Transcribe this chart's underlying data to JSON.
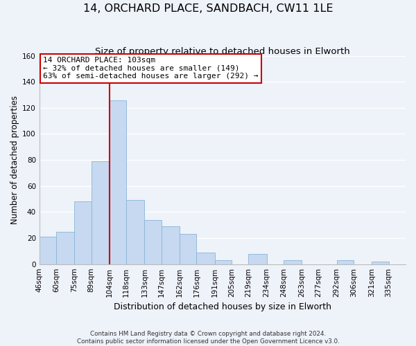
{
  "title": "14, ORCHARD PLACE, SANDBACH, CW11 1LE",
  "subtitle": "Size of property relative to detached houses in Elworth",
  "xlabel": "Distribution of detached houses by size in Elworth",
  "ylabel": "Number of detached properties",
  "bar_left_edges": [
    46,
    60,
    75,
    89,
    104,
    118,
    133,
    147,
    162,
    176,
    191,
    205,
    219,
    234,
    248,
    263,
    277,
    292,
    306,
    321
  ],
  "bar_heights": [
    21,
    25,
    48,
    79,
    126,
    49,
    34,
    29,
    23,
    9,
    3,
    0,
    8,
    0,
    3,
    0,
    0,
    3,
    0,
    2
  ],
  "bin_widths": [
    14,
    15,
    14,
    15,
    14,
    15,
    14,
    15,
    14,
    15,
    14,
    14,
    15,
    14,
    15,
    14,
    15,
    14,
    15,
    14
  ],
  "bar_color": "#c6d9f0",
  "bar_edge_color": "#8ab4d8",
  "x_tick_labels": [
    "46sqm",
    "60sqm",
    "75sqm",
    "89sqm",
    "104sqm",
    "118sqm",
    "133sqm",
    "147sqm",
    "162sqm",
    "176sqm",
    "191sqm",
    "205sqm",
    "219sqm",
    "234sqm",
    "248sqm",
    "263sqm",
    "277sqm",
    "292sqm",
    "306sqm",
    "321sqm",
    "335sqm"
  ],
  "x_tick_positions": [
    46,
    60,
    75,
    89,
    104,
    118,
    133,
    147,
    162,
    176,
    191,
    205,
    219,
    234,
    248,
    263,
    277,
    292,
    306,
    321,
    335
  ],
  "xlim_left": 46,
  "xlim_right": 349,
  "ylim": [
    0,
    160
  ],
  "yticks": [
    0,
    20,
    40,
    60,
    80,
    100,
    120,
    140,
    160
  ],
  "property_line_x": 104,
  "property_line_color": "#cc0000",
  "annotation_text_line1": "14 ORCHARD PLACE: 103sqm",
  "annotation_text_line2": "← 32% of detached houses are smaller (149)",
  "annotation_text_line3": "63% of semi-detached houses are larger (292) →",
  "footer_line1": "Contains HM Land Registry data © Crown copyright and database right 2024.",
  "footer_line2": "Contains public sector information licensed under the Open Government Licence v3.0.",
  "background_color": "#eef2f9",
  "grid_color": "#ffffff",
  "title_fontsize": 11.5,
  "subtitle_fontsize": 9.5,
  "ylabel_fontsize": 8.5,
  "xlabel_fontsize": 9,
  "tick_fontsize": 7.5,
  "annotation_fontsize": 8,
  "footer_fontsize": 6.3
}
